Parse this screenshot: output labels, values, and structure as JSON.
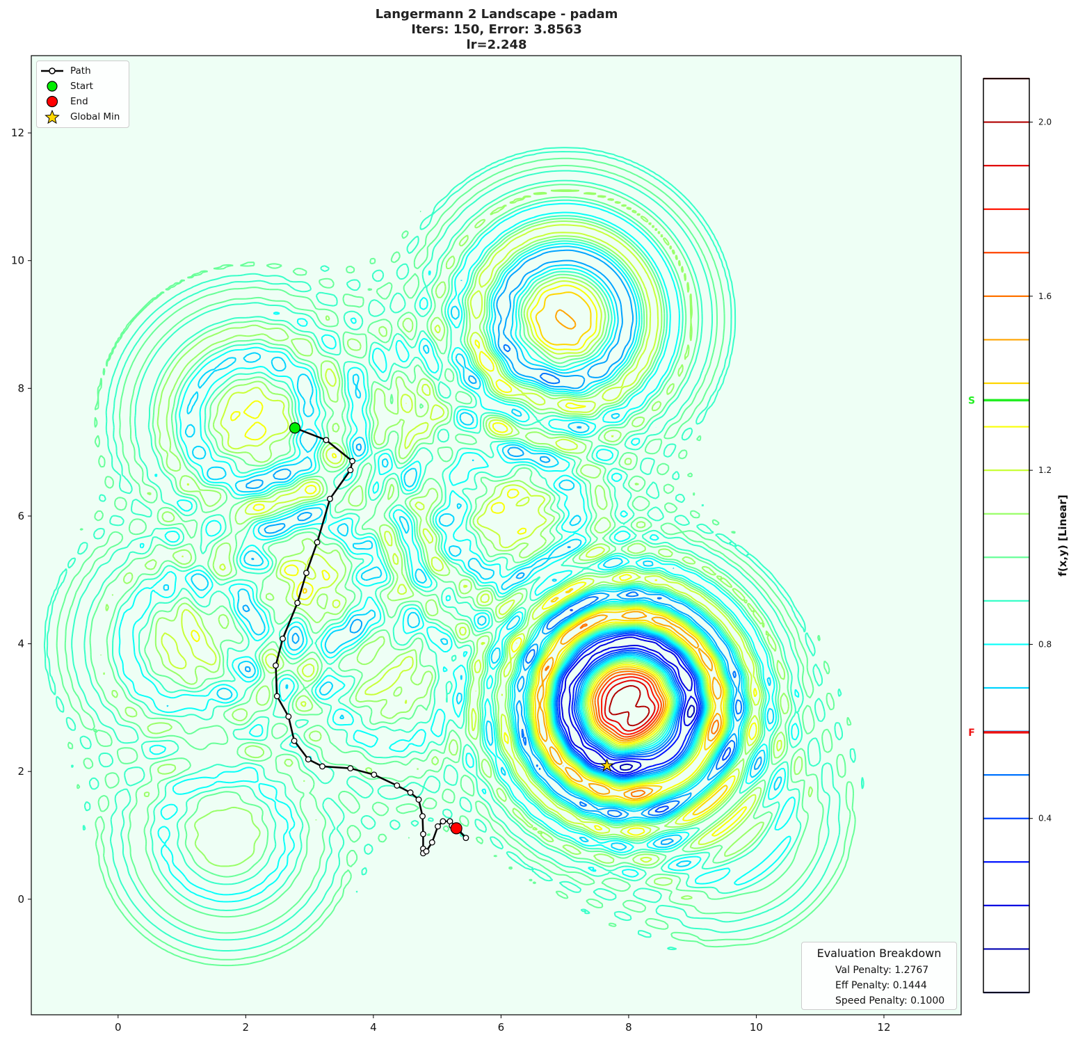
{
  "chart_data": {
    "type": "contour",
    "title_lines": [
      "Langermann 2 Landscape - padam",
      "Iters: 150, Error: 3.8563",
      "lr=2.248"
    ],
    "xlim": [
      -1.36,
      13.21
    ],
    "ylim": [
      -1.81,
      13.21
    ],
    "x_ticks": [
      0,
      2,
      4,
      6,
      8,
      10,
      12
    ],
    "y_ticks": [
      0,
      2,
      4,
      6,
      8,
      10,
      12
    ],
    "grid": false,
    "colormap": "jet",
    "background_color": "#eefff5",
    "contour_levels": [
      0.0,
      0.1,
      0.2,
      0.3,
      0.4,
      0.5,
      0.6,
      0.7,
      0.8,
      0.9,
      1.0,
      1.1,
      1.2,
      1.3,
      1.4,
      1.5,
      1.6,
      1.7,
      1.8,
      1.9,
      2.0,
      2.1
    ],
    "colorbar": {
      "label": "f(x,y) [Linear]",
      "range": [
        0.0,
        2.1
      ],
      "ticks": [
        0.4,
        0.8,
        1.2,
        1.6,
        2.0
      ],
      "tick_labels": [
        "0.4",
        "0.8",
        "1.2",
        "1.6",
        "2.0"
      ],
      "markers": [
        {
          "label": "S",
          "value": 1.361,
          "color": "#22ee22"
        },
        {
          "label": "F",
          "value": 0.598,
          "color": "#ee1111"
        }
      ]
    },
    "path": {
      "x": [
        2.77,
        3.26,
        3.67,
        3.64,
        3.32,
        3.12,
        2.95,
        2.81,
        2.58,
        2.47,
        2.49,
        2.67,
        2.76,
        2.98,
        3.2,
        3.64,
        4.01,
        4.37,
        4.58,
        4.71,
        4.77,
        4.78,
        4.78,
        4.78,
        4.83,
        4.92,
        5.01,
        5.09,
        5.2,
        5.23,
        5.34,
        5.45,
        5.3
      ],
      "y": [
        7.38,
        7.19,
        6.86,
        6.72,
        6.27,
        5.59,
        5.11,
        4.64,
        4.08,
        3.66,
        3.18,
        2.86,
        2.48,
        2.19,
        2.08,
        2.05,
        1.95,
        1.78,
        1.67,
        1.56,
        1.3,
        1.02,
        0.79,
        0.72,
        0.75,
        0.89,
        1.14,
        1.22,
        1.22,
        1.15,
        1.08,
        0.96,
        1.11
      ]
    },
    "start": {
      "x": 2.77,
      "y": 7.38,
      "color": "#00ee00"
    },
    "end": {
      "x": 5.3,
      "y": 1.11,
      "color": "#ff0000"
    },
    "global_min": {
      "x": 7.66,
      "y": 2.09,
      "color": "#ffd700"
    },
    "legend": {
      "placement": "top-left",
      "entries": [
        "Path",
        "Start",
        "End",
        "Global Min"
      ]
    }
  },
  "evaluation": {
    "title": "Evaluation Breakdown",
    "lines": [
      "Val Penalty: 1.2767",
      "Eff Penalty: 0.1444",
      "Speed Penalty: 0.1000"
    ]
  }
}
